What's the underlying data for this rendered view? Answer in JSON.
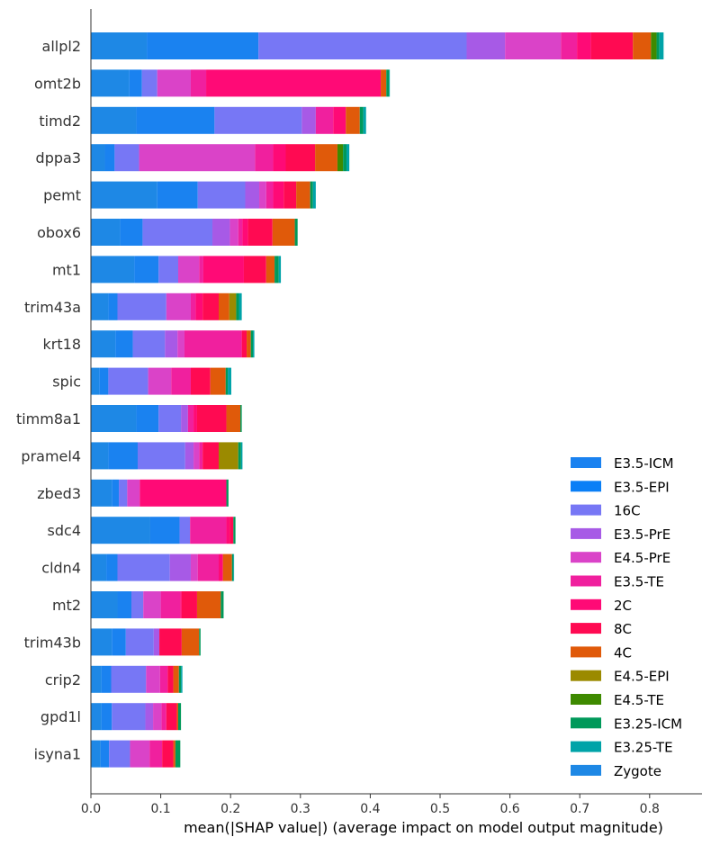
{
  "chart_data": {
    "type": "bar",
    "orientation": "horizontal",
    "stacked": true,
    "xlabel": "mean(|SHAP value|) (average impact on model output magnitude)",
    "ylabel": "",
    "xlim": [
      0,
      0.875
    ],
    "xticks": [
      "0.0",
      "0.1",
      "0.2",
      "0.3",
      "0.4",
      "0.5",
      "0.6",
      "0.7",
      "0.8"
    ],
    "legend_position": "lower-right",
    "categories": [
      "allpl2",
      "omt2b",
      "timd2",
      "dppa3",
      "pemt",
      "obox6",
      "mt1",
      "trim43a",
      "krt18",
      "spic",
      "timm8a1",
      "pramel4",
      "zbed3",
      "sdc4",
      "cldn4",
      "mt2",
      "trim43b",
      "crip2",
      "gpd1l",
      "isyna1"
    ],
    "series": [
      {
        "name": "Zygote",
        "color": "#1e88e5",
        "values": [
          0.08,
          0.055,
          0.065,
          0.02,
          0.095,
          0.042,
          0.062,
          0.025,
          0.035,
          0.012,
          0.065,
          0.025,
          0.03,
          0.085,
          0.022,
          0.038,
          0.03,
          0.015,
          0.015,
          0.014
        ]
      },
      {
        "name": "E3.5-ICM",
        "color": "#1a82f0",
        "values": [
          0.16,
          0.018,
          0.112,
          0.014,
          0.058,
          0.032,
          0.035,
          0.013,
          0.025,
          0.013,
          0.032,
          0.042,
          0.01,
          0.042,
          0.016,
          0.02,
          0.02,
          0.014,
          0.015,
          0.012
        ]
      },
      {
        "name": "E3.5-EPI",
        "color": "#0a7ff6",
        "values": [
          0.0,
          0.0,
          0.0,
          0.0,
          0.0,
          0.0,
          0.0,
          0.0,
          0.0,
          0.0,
          0.0,
          0.0,
          0.0,
          0.0,
          0.0,
          0.0,
          0.0,
          0.0,
          0.0,
          0.0
        ]
      },
      {
        "name": "16C",
        "color": "#7777f5",
        "values": [
          0.298,
          0.022,
          0.125,
          0.035,
          0.068,
          0.1,
          0.028,
          0.07,
          0.046,
          0.057,
          0.032,
          0.068,
          0.012,
          0.015,
          0.075,
          0.017,
          0.04,
          0.05,
          0.048,
          0.03
        ]
      },
      {
        "name": "E3.5-PrE",
        "color": "#a75ae6",
        "values": [
          0.055,
          0.0,
          0.02,
          0.0,
          0.02,
          0.025,
          0.0,
          0.0,
          0.018,
          0.0,
          0.01,
          0.012,
          0.0,
          0.0,
          0.03,
          0.0,
          0.008,
          0.0,
          0.011,
          0.0
        ]
      },
      {
        "name": "E4.5-PrE",
        "color": "#da43c8",
        "values": [
          0.08,
          0.048,
          0.0,
          0.166,
          0.01,
          0.012,
          0.03,
          0.035,
          0.01,
          0.033,
          0.0,
          0.008,
          0.018,
          0.0,
          0.01,
          0.025,
          0.0,
          0.02,
          0.012,
          0.028
        ]
      },
      {
        "name": "E3.5-TE",
        "color": "#f0209e",
        "values": [
          0.023,
          0.022,
          0.025,
          0.026,
          0.01,
          0.006,
          0.006,
          0.007,
          0.082,
          0.028,
          0.008,
          0.005,
          0.0,
          0.052,
          0.03,
          0.028,
          0.0,
          0.011,
          0.007,
          0.018
        ]
      },
      {
        "name": "2C",
        "color": "#ff0a76",
        "values": [
          0.02,
          0.25,
          0.018,
          0.018,
          0.015,
          0.008,
          0.058,
          0.01,
          0.0,
          0.0,
          0.005,
          0.0,
          0.124,
          0.005,
          0.006,
          0.002,
          0.0,
          0.0,
          0.0,
          0.0
        ]
      },
      {
        "name": "8C",
        "color": "#ff0a52",
        "values": [
          0.06,
          0.0,
          0.0,
          0.042,
          0.018,
          0.035,
          0.032,
          0.023,
          0.007,
          0.028,
          0.042,
          0.023,
          0.0,
          0.005,
          0.0,
          0.022,
          0.032,
          0.008,
          0.015,
          0.016
        ]
      },
      {
        "name": "4C",
        "color": "#e05a0a",
        "values": [
          0.026,
          0.008,
          0.02,
          0.032,
          0.02,
          0.032,
          0.012,
          0.015,
          0.006,
          0.022,
          0.02,
          0.0,
          0.0,
          0.0,
          0.013,
          0.034,
          0.025,
          0.008,
          0.002,
          0.003
        ]
      },
      {
        "name": "E4.5-EPI",
        "color": "#9b8a00",
        "values": [
          0.0,
          0.0,
          0.0,
          0.0,
          0.0,
          0.0,
          0.0,
          0.01,
          0.0,
          0.0,
          0.0,
          0.028,
          0.0,
          0.0,
          0.0,
          0.0,
          0.0,
          0.0,
          0.0,
          0.0
        ]
      },
      {
        "name": "E4.5-TE",
        "color": "#3e8a00",
        "values": [
          0.008,
          0.0,
          0.0,
          0.008,
          0.0,
          0.0,
          0.0,
          0.0,
          0.0,
          0.0,
          0.0,
          0.0,
          0.0,
          0.0,
          0.0,
          0.0,
          0.0,
          0.0,
          0.0,
          0.0
        ]
      },
      {
        "name": "E3.25-ICM",
        "color": "#00995a",
        "values": [
          0.004,
          0.004,
          0.005,
          0.005,
          0.004,
          0.004,
          0.006,
          0.004,
          0.003,
          0.003,
          0.002,
          0.004,
          0.003,
          0.003,
          0.002,
          0.004,
          0.002,
          0.003,
          0.004,
          0.007
        ]
      },
      {
        "name": "E3.25-TE",
        "color": "#00a3a8",
        "values": [
          0.006,
          0.001,
          0.004,
          0.004,
          0.004,
          0.0,
          0.003,
          0.004,
          0.002,
          0.005,
          0.0,
          0.002,
          0.0,
          0.0,
          0.001,
          0.0,
          0.0,
          0.002,
          0.0,
          0.0
        ]
      }
    ],
    "legend_entries": [
      {
        "name": "E3.5-ICM",
        "color": "#1a82f0"
      },
      {
        "name": "E3.5-EPI",
        "color": "#0a7ff6"
      },
      {
        "name": "16C",
        "color": "#7777f5"
      },
      {
        "name": "E3.5-PrE",
        "color": "#a75ae6"
      },
      {
        "name": "E4.5-PrE",
        "color": "#da43c8"
      },
      {
        "name": "E3.5-TE",
        "color": "#f0209e"
      },
      {
        "name": "2C",
        "color": "#ff0a76"
      },
      {
        "name": "8C",
        "color": "#ff0a52"
      },
      {
        "name": "4C",
        "color": "#e05a0a"
      },
      {
        "name": "E4.5-EPI",
        "color": "#9b8a00"
      },
      {
        "name": "E4.5-TE",
        "color": "#3e8a00"
      },
      {
        "name": "E3.25-ICM",
        "color": "#00995a"
      },
      {
        "name": "E3.25-TE",
        "color": "#00a3a8"
      },
      {
        "name": "Zygote",
        "color": "#1e88e5"
      }
    ]
  }
}
